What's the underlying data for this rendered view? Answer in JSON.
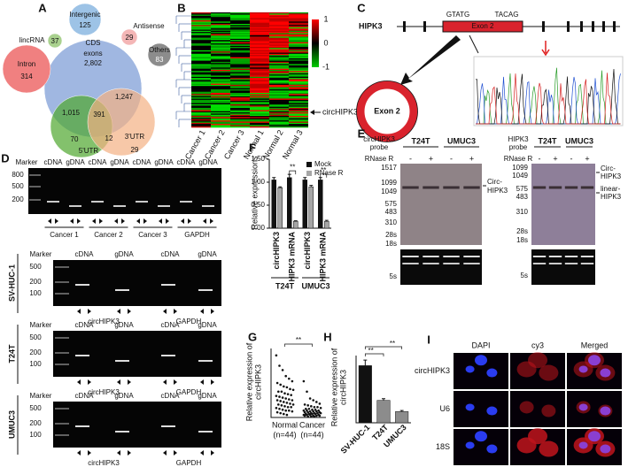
{
  "panels": {
    "A": {
      "label": "A",
      "sets": [
        {
          "name": "Intergenic",
          "count": "125"
        },
        {
          "name": "Antisense",
          "count": "29"
        },
        {
          "name": "lincRNA",
          "count": "37"
        },
        {
          "name": "Intron",
          "count": "314"
        },
        {
          "name": "Others",
          "count": "83"
        },
        {
          "name": "CDS",
          "sub": "exons",
          "count": "2,802"
        },
        {
          "name": "3'UTR",
          "count": "29"
        },
        {
          "name": "5'UTR",
          "count": "70"
        }
      ],
      "overlaps": [
        "1,247",
        "1,015",
        "391",
        "12"
      ]
    },
    "B": {
      "label": "B",
      "columns": [
        "Cancer 1",
        "Cancer 2",
        "Cancer 3",
        "Normal 1",
        "Normal 2",
        "Normal 3"
      ],
      "scale": [
        "1",
        "0",
        "-1"
      ],
      "marker": "circHIPK3"
    },
    "C": {
      "label": "C",
      "gene": "HIPK3",
      "exon": "Exon 2",
      "left_site": "GTATG",
      "right_site": "TACAG",
      "circle": "Exon 2"
    },
    "D": {
      "label": "D",
      "marker": "Marker",
      "top": {
        "ladder": [
          "800",
          "500",
          "200"
        ],
        "lanes": [
          "cDNA",
          "gDNA"
        ],
        "groups": [
          "Cancer 1",
          "Cancer 2",
          "Cancer 3",
          "GAPDH"
        ]
      },
      "lines": [
        {
          "name": "SV-HUC-1",
          "ladder": [
            "500",
            "200",
            "100"
          ]
        },
        {
          "name": "T24T",
          "ladder": [
            "500",
            "200",
            "100"
          ]
        },
        {
          "name": "UMUC3",
          "ladder": [
            "500",
            "200",
            "100"
          ]
        }
      ],
      "lanes": [
        "cDNA",
        "gDNA",
        "cDNA",
        "gDNA"
      ],
      "genes": [
        "circHIPK3",
        "GAPDH"
      ]
    },
    "E": {
      "label": "E",
      "treatment": "RNase R",
      "lines": [
        "T24T",
        "UMUC3"
      ],
      "signs": [
        "-",
        "+"
      ],
      "blots": [
        {
          "probe": [
            "circHIPK3",
            "probe"
          ],
          "ladder": [
            "1517",
            "1099",
            "1049",
            "575",
            "483",
            "310",
            "28s",
            "18s",
            "5s"
          ],
          "bands": [
            [
              "Circ-",
              "HIPK3"
            ]
          ]
        },
        {
          "probe": [
            "HIPK3",
            "probe"
          ],
          "ladder": [
            "1099",
            "1049",
            "575",
            "483",
            "310",
            "28s",
            "18s",
            "5s"
          ],
          "bands": [
            [
              "Circ-",
              "HIPK3"
            ],
            [
              "linear-",
              "HIPK3"
            ]
          ]
        }
      ]
    },
    "I": {
      "label": "I",
      "columns": [
        "DAPI",
        "cy3",
        "Merged"
      ],
      "rows": [
        "circHIPK3",
        "U6",
        "18S"
      ]
    }
  },
  "chart_data": [
    {
      "panel": "F",
      "type": "bar",
      "y_label": "Relative expressions",
      "categories": [
        "circHIPK3",
        "HIPK3 mRNA",
        "circHIPK3",
        "HIPK3 mRNA"
      ],
      "groups": [
        "T24T",
        "UMUC3"
      ],
      "series": [
        {
          "name": "Mock",
          "color": "#111111",
          "values": [
            1.05,
            1.1,
            1.05,
            1.05
          ],
          "errors": [
            0.05,
            0.07,
            0.05,
            0.05
          ]
        },
        {
          "name": "RNase R",
          "color": "#a6a6a6",
          "values": [
            0.88,
            0.15,
            0.9,
            0.15
          ],
          "errors": [
            0.02,
            0.01,
            0.03,
            0.02
          ]
        }
      ],
      "ylim": [
        0,
        1.5
      ],
      "yticks": [
        {
          "value": 0,
          "label": "0.00"
        },
        {
          "value": 0.5,
          "label": "0.50"
        },
        {
          "value": 1,
          "label": "1.00"
        },
        {
          "value": 1.5,
          "label": "1.50"
        }
      ],
      "annotations": [
        "**",
        "**"
      ],
      "legend": "upper right"
    },
    {
      "panel": "G",
      "type": "strip",
      "y_label": [
        "Relative expression of",
        "circHIPK3"
      ],
      "categories": [
        "Normal",
        "Cancer"
      ],
      "sample_sizes": [
        "(n=44)",
        "(n=44)"
      ],
      "color": "#111111",
      "values": [
        [
          0.72,
          0.6,
          0.55,
          0.48,
          0.45,
          0.42,
          0.4,
          0.38,
          0.36,
          0.35,
          0.33,
          0.32,
          0.3,
          0.3,
          0.28,
          0.27,
          0.26,
          0.25,
          0.24,
          0.23,
          0.22,
          0.21,
          0.2,
          0.2,
          0.19,
          0.18,
          0.17,
          0.16,
          0.15,
          0.15,
          0.14,
          0.13,
          0.12,
          0.12,
          0.11,
          0.1,
          0.09,
          0.08,
          0.08,
          0.07,
          0.06,
          0.05,
          0.04,
          0.03
        ],
        [
          0.42,
          0.3,
          0.22,
          0.2,
          0.18,
          0.16,
          0.15,
          0.14,
          0.13,
          0.12,
          0.12,
          0.11,
          0.1,
          0.1,
          0.09,
          0.09,
          0.08,
          0.08,
          0.08,
          0.07,
          0.07,
          0.07,
          0.06,
          0.06,
          0.06,
          0.05,
          0.05,
          0.05,
          0.05,
          0.04,
          0.04,
          0.04,
          0.04,
          0.03,
          0.03,
          0.03,
          0.03,
          0.02,
          0.02,
          0.02,
          0.02,
          0.01,
          0.01,
          0.01
        ]
      ],
      "ylim": [
        0,
        0.8
      ],
      "annotation": "**"
    },
    {
      "panel": "H",
      "type": "bar",
      "y_label": [
        "Relative expression of",
        "circHIPK3"
      ],
      "categories": [
        "SV-HUC-1",
        "T24T",
        "UMUC3"
      ],
      "values": [
        1.02,
        0.4,
        0.2
      ],
      "errors": [
        0.1,
        0.03,
        0.02
      ],
      "colors": [
        "#111111",
        "#8c8c8c",
        "#8c8c8c"
      ],
      "ylim": [
        0,
        1.2
      ],
      "annotations": [
        "**",
        "**"
      ]
    }
  ]
}
